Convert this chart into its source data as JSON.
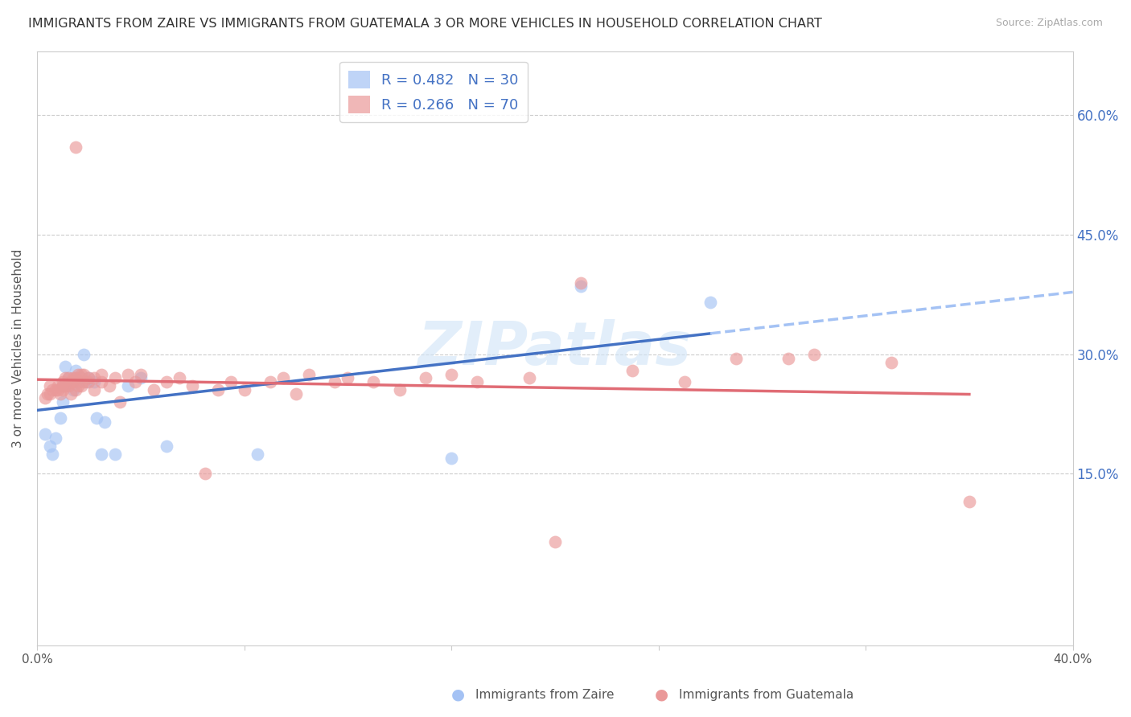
{
  "title": "IMMIGRANTS FROM ZAIRE VS IMMIGRANTS FROM GUATEMALA 3 OR MORE VEHICLES IN HOUSEHOLD CORRELATION CHART",
  "source": "Source: ZipAtlas.com",
  "ylabel": "3 or more Vehicles in Household",
  "ytick_labels": [
    "15.0%",
    "30.0%",
    "45.0%",
    "60.0%"
  ],
  "ytick_values": [
    0.15,
    0.3,
    0.45,
    0.6
  ],
  "xlim": [
    0.0,
    0.4
  ],
  "ylim": [
    -0.065,
    0.68
  ],
  "legend1_text": "R = 0.482   N = 30",
  "legend2_text": "R = 0.266   N = 70",
  "legend1_color": "#a4c2f4",
  "legend2_color": "#ea9999",
  "zaire_color": "#a4c2f4",
  "guatemala_color": "#ea9999",
  "zaire_scatter": [
    [
      0.003,
      0.2
    ],
    [
      0.005,
      0.185
    ],
    [
      0.006,
      0.175
    ],
    [
      0.007,
      0.195
    ],
    [
      0.009,
      0.22
    ],
    [
      0.01,
      0.24
    ],
    [
      0.01,
      0.26
    ],
    [
      0.011,
      0.285
    ],
    [
      0.012,
      0.27
    ],
    [
      0.013,
      0.265
    ],
    [
      0.014,
      0.255
    ],
    [
      0.015,
      0.27
    ],
    [
      0.015,
      0.28
    ],
    [
      0.016,
      0.265
    ],
    [
      0.017,
      0.27
    ],
    [
      0.018,
      0.3
    ],
    [
      0.019,
      0.265
    ],
    [
      0.02,
      0.27
    ],
    [
      0.022,
      0.265
    ],
    [
      0.023,
      0.22
    ],
    [
      0.025,
      0.175
    ],
    [
      0.026,
      0.215
    ],
    [
      0.03,
      0.175
    ],
    [
      0.035,
      0.26
    ],
    [
      0.04,
      0.27
    ],
    [
      0.05,
      0.185
    ],
    [
      0.085,
      0.175
    ],
    [
      0.16,
      0.17
    ],
    [
      0.21,
      0.385
    ],
    [
      0.26,
      0.365
    ]
  ],
  "guatemala_scatter": [
    [
      0.003,
      0.245
    ],
    [
      0.004,
      0.25
    ],
    [
      0.005,
      0.25
    ],
    [
      0.005,
      0.26
    ],
    [
      0.006,
      0.255
    ],
    [
      0.007,
      0.255
    ],
    [
      0.008,
      0.255
    ],
    [
      0.008,
      0.26
    ],
    [
      0.009,
      0.25
    ],
    [
      0.01,
      0.255
    ],
    [
      0.01,
      0.26
    ],
    [
      0.01,
      0.265
    ],
    [
      0.011,
      0.26
    ],
    [
      0.011,
      0.27
    ],
    [
      0.012,
      0.26
    ],
    [
      0.012,
      0.27
    ],
    [
      0.013,
      0.25
    ],
    [
      0.013,
      0.265
    ],
    [
      0.014,
      0.265
    ],
    [
      0.014,
      0.27
    ],
    [
      0.015,
      0.255
    ],
    [
      0.015,
      0.27
    ],
    [
      0.016,
      0.26
    ],
    [
      0.016,
      0.275
    ],
    [
      0.017,
      0.26
    ],
    [
      0.017,
      0.275
    ],
    [
      0.018,
      0.265
    ],
    [
      0.018,
      0.275
    ],
    [
      0.02,
      0.265
    ],
    [
      0.02,
      0.27
    ],
    [
      0.022,
      0.255
    ],
    [
      0.022,
      0.27
    ],
    [
      0.025,
      0.265
    ],
    [
      0.025,
      0.275
    ],
    [
      0.028,
      0.26
    ],
    [
      0.03,
      0.27
    ],
    [
      0.032,
      0.24
    ],
    [
      0.035,
      0.275
    ],
    [
      0.038,
      0.265
    ],
    [
      0.04,
      0.275
    ],
    [
      0.045,
      0.255
    ],
    [
      0.05,
      0.265
    ],
    [
      0.055,
      0.27
    ],
    [
      0.06,
      0.26
    ],
    [
      0.065,
      0.15
    ],
    [
      0.07,
      0.255
    ],
    [
      0.075,
      0.265
    ],
    [
      0.08,
      0.255
    ],
    [
      0.09,
      0.265
    ],
    [
      0.095,
      0.27
    ],
    [
      0.1,
      0.25
    ],
    [
      0.105,
      0.275
    ],
    [
      0.115,
      0.265
    ],
    [
      0.12,
      0.27
    ],
    [
      0.13,
      0.265
    ],
    [
      0.14,
      0.255
    ],
    [
      0.15,
      0.27
    ],
    [
      0.16,
      0.275
    ],
    [
      0.17,
      0.265
    ],
    [
      0.19,
      0.27
    ],
    [
      0.2,
      0.065
    ],
    [
      0.21,
      0.39
    ],
    [
      0.23,
      0.28
    ],
    [
      0.25,
      0.265
    ],
    [
      0.27,
      0.295
    ],
    [
      0.29,
      0.295
    ],
    [
      0.3,
      0.3
    ],
    [
      0.015,
      0.56
    ],
    [
      0.33,
      0.29
    ],
    [
      0.36,
      0.115
    ]
  ],
  "watermark": "ZIPatlas",
  "title_fontsize": 11.5,
  "axis_label_fontsize": 11,
  "tick_fontsize": 11,
  "source_fontsize": 9,
  "background_color": "#ffffff",
  "grid_color": "#cccccc",
  "axis_color": "#cccccc",
  "right_tick_color": "#4472c4",
  "zaire_line_color": "#4472c4",
  "guatemala_line_color": "#e06c75",
  "zaire_line_extend_color": "#a4c2f4",
  "zaire_line_solid_end": 0.26,
  "zaire_line_dash_end": 0.4
}
